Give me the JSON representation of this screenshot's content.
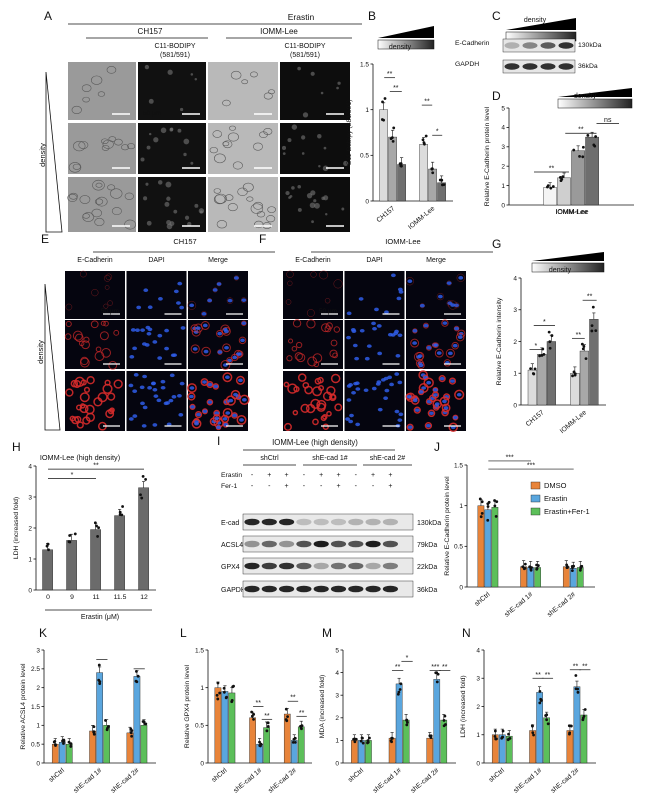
{
  "panels": {
    "A": {
      "letter": "A",
      "treatment": "Erastin",
      "col_groups": [
        "CH157",
        "IOMM-Lee"
      ],
      "channel_label": "C11-BODIPY\n(581/591)",
      "side_label": "density",
      "scale": "50 μm"
    },
    "B": {
      "letter": "B",
      "density_label": "density",
      "ylabel": "C11-Bobipy (581/591)"
    },
    "C": {
      "letter": "C",
      "density_label": "density",
      "rows": [
        {
          "label": "E-Cadherin",
          "kda": "130kDa"
        },
        {
          "label": "GAPDH",
          "kda": "36kDa"
        }
      ]
    },
    "D": {
      "letter": "D",
      "density_label": "density",
      "ylabel": "Relative E-Cadherin protein level",
      "xlabel": "IOMM-Lee"
    },
    "E": {
      "letter": "E",
      "cell": "CH157",
      "channels": [
        "E-Cadherin",
        "DAPI",
        "Merge"
      ],
      "side_label": "density",
      "scale": "50 μm"
    },
    "F": {
      "letter": "F",
      "cell": "IOMM-Lee",
      "channels": [
        "E-Cadherin",
        "DAPI",
        "Merge"
      ],
      "scale": "50 μm"
    },
    "G": {
      "letter": "G",
      "density_label": "density",
      "ylabel": "Relative E-Cadherin intensity"
    },
    "H": {
      "letter": "H",
      "title": "IOMM-Lee (high density)",
      "ylabel": "LDH (increased fold)",
      "xlabel": "Erastin (μM)"
    },
    "I": {
      "letter": "I",
      "title": "IOMM-Lee (high density)",
      "groups": [
        "shCtrl",
        "shE-cad 1#",
        "shE-cad 2#"
      ],
      "treatments": [
        {
          "name": "Erastin",
          "signs": [
            "-",
            "+",
            "+",
            "-",
            "+",
            "+",
            "-",
            "+",
            "+"
          ]
        },
        {
          "name": "Fer-1",
          "signs": [
            "-",
            "-",
            "+",
            "-",
            "-",
            "+",
            "-",
            "-",
            "+"
          ]
        }
      ],
      "blots": [
        {
          "label": "E-cad",
          "kda": "130kDa"
        },
        {
          "label": "ACSL4",
          "kda": "79kDa"
        },
        {
          "label": "GPX4",
          "kda": "22kDa"
        },
        {
          "label": "GAPDH",
          "kda": "36kDa"
        }
      ]
    },
    "J": {
      "letter": "J",
      "ylabel": "Relative E-Cadherin protein level"
    },
    "K": {
      "letter": "K",
      "ylabel": "Relative ACSL4 protein level"
    },
    "L": {
      "letter": "L",
      "ylabel": "Relative GPX4 protein level"
    },
    "M": {
      "letter": "M",
      "ylabel": "MDA (increased fold)"
    },
    "N": {
      "letter": "N",
      "ylabel": "LDH (increased fold)"
    }
  },
  "colors": {
    "dmso": "#e8843a",
    "erastin": "#5aa6de",
    "fer1": "#5cbf5a",
    "grey_light": "#dcdcdc",
    "grey_mid": "#a8a8a8",
    "grey_dark": "#6f6f6f"
  },
  "chart_data": [
    {
      "panel": "B",
      "type": "bar",
      "categories": [
        "CH157",
        "IOMM-Lee"
      ],
      "ylabel": "C11-Bobipy (581/591)",
      "ylim": [
        0,
        1.5
      ],
      "yticks": [
        0,
        0.5,
        1,
        1.5
      ],
      "series": [
        {
          "values": [
            1.0,
            0.62
          ]
        },
        {
          "values": [
            0.7,
            0.35
          ]
        },
        {
          "values": [
            0.4,
            0.2
          ]
        }
      ],
      "annotations": [
        "**",
        "**",
        "**",
        "*"
      ]
    },
    {
      "panel": "D",
      "type": "bar",
      "categories": [
        "IOMM-Lee"
      ],
      "ylabel": "Relative E-Cadherin protein level",
      "ylim": [
        0,
        5
      ],
      "yticks": [
        0,
        1,
        2,
        3,
        4,
        5
      ],
      "series": [
        {
          "values": [
            0.9
          ]
        },
        {
          "values": [
            1.4
          ]
        },
        {
          "values": [
            2.8
          ]
        },
        {
          "values": [
            3.5
          ]
        }
      ],
      "annotations": [
        "**",
        "**",
        "ns"
      ]
    },
    {
      "panel": "G",
      "type": "bar",
      "categories": [
        "CH157",
        "IOMM-Lee"
      ],
      "ylabel": "Relative E-Cadherin intensity",
      "ylim": [
        0,
        4
      ],
      "yticks": [
        0,
        1,
        2,
        3,
        4
      ],
      "series": [
        {
          "values": [
            1.1,
            1.0
          ]
        },
        {
          "values": [
            1.6,
            1.7
          ]
        },
        {
          "values": [
            2.0,
            2.7
          ]
        }
      ],
      "annotations": [
        "*",
        "*",
        "**",
        "**"
      ]
    },
    {
      "panel": "H",
      "type": "bar",
      "categories": [
        "0",
        "9",
        "11",
        "11.5",
        "12"
      ],
      "ylabel": "LDH (increased fold)",
      "xlabel": "Erastin (μM)",
      "ylim": [
        0,
        4
      ],
      "yticks": [
        0,
        1,
        2,
        3,
        4
      ],
      "values": [
        1.3,
        1.6,
        1.95,
        2.4,
        3.3
      ],
      "annotations": [
        "*",
        "**"
      ]
    },
    {
      "panel": "J",
      "type": "bar",
      "categories": [
        "shCtrl",
        "shE-cad 1#",
        "shE-cad 2#"
      ],
      "ylabel": "Relative E-Cadherin protein level",
      "ylim": [
        0,
        1.5
      ],
      "yticks": [
        0,
        0.5,
        1.0,
        1.5
      ],
      "legend": "top-right",
      "series": [
        {
          "name": "DMSO",
          "values": [
            1.0,
            0.25,
            0.25
          ]
        },
        {
          "name": "Erastin",
          "values": [
            0.95,
            0.24,
            0.23
          ]
        },
        {
          "name": "Erastin+Fer-1",
          "values": [
            0.98,
            0.24,
            0.24
          ]
        }
      ],
      "annotations": [
        "***",
        "***"
      ]
    },
    {
      "panel": "K",
      "type": "bar",
      "categories": [
        "shCtrl",
        "shE-cad 1#",
        "shE-cad 2#"
      ],
      "ylabel": "Relative ACSL4 protein level",
      "ylim": [
        0,
        3
      ],
      "yticks": [
        0,
        0.5,
        1,
        1.5,
        2,
        2.5,
        3
      ],
      "series": [
        {
          "name": "DMSO",
          "values": [
            0.5,
            0.85,
            0.8
          ]
        },
        {
          "name": "Erastin",
          "values": [
            0.55,
            2.4,
            2.3
          ]
        },
        {
          "name": "Erastin+Fer-1",
          "values": [
            0.5,
            1.0,
            1.0
          ]
        }
      ]
    },
    {
      "panel": "L",
      "type": "bar",
      "categories": [
        "shCtrl",
        "shE-cad 1#",
        "shE-cad 2#"
      ],
      "ylabel": "Relative GPX4 protein level",
      "ylim": [
        0,
        1.5
      ],
      "yticks": [
        0,
        0.5,
        1,
        1.5
      ],
      "series": [
        {
          "name": "DMSO",
          "values": [
            1.0,
            0.6,
            0.65
          ]
        },
        {
          "name": "Erastin",
          "values": [
            0.95,
            0.25,
            0.3
          ]
        },
        {
          "name": "Erastin+Fer-1",
          "values": [
            0.93,
            0.47,
            0.48
          ]
        }
      ],
      "annotations": [
        "**",
        "**",
        "**",
        "**"
      ]
    },
    {
      "panel": "M",
      "type": "bar",
      "categories": [
        "shCtrl",
        "shE-cad 1#",
        "shE-cad 2#"
      ],
      "ylabel": "MDA (increased fold)",
      "ylim": [
        0,
        5
      ],
      "yticks": [
        0,
        1,
        2,
        3,
        4,
        5
      ],
      "series": [
        {
          "name": "DMSO",
          "values": [
            1.0,
            1.1,
            1.1
          ]
        },
        {
          "name": "Erastin",
          "values": [
            1.0,
            3.5,
            3.7
          ]
        },
        {
          "name": "Erastin+Fer-1",
          "values": [
            1.0,
            1.9,
            1.9
          ]
        }
      ],
      "annotations": [
        "**",
        "*",
        "***",
        "**"
      ]
    },
    {
      "panel": "N",
      "type": "bar",
      "categories": [
        "shCtrl",
        "shE-cad 1#",
        "shE-cad 2#"
      ],
      "ylabel": "LDH (increased fold)",
      "ylim": [
        0,
        4
      ],
      "yticks": [
        0,
        1,
        2,
        3,
        4
      ],
      "series": [
        {
          "name": "DMSO",
          "values": [
            1.0,
            1.15,
            1.15
          ]
        },
        {
          "name": "Erastin",
          "values": [
            1.0,
            2.5,
            2.7
          ]
        },
        {
          "name": "Erastin+Fer-1",
          "values": [
            0.95,
            1.6,
            1.7
          ]
        }
      ],
      "annotations": [
        "**",
        "**",
        "**",
        "**"
      ]
    }
  ]
}
